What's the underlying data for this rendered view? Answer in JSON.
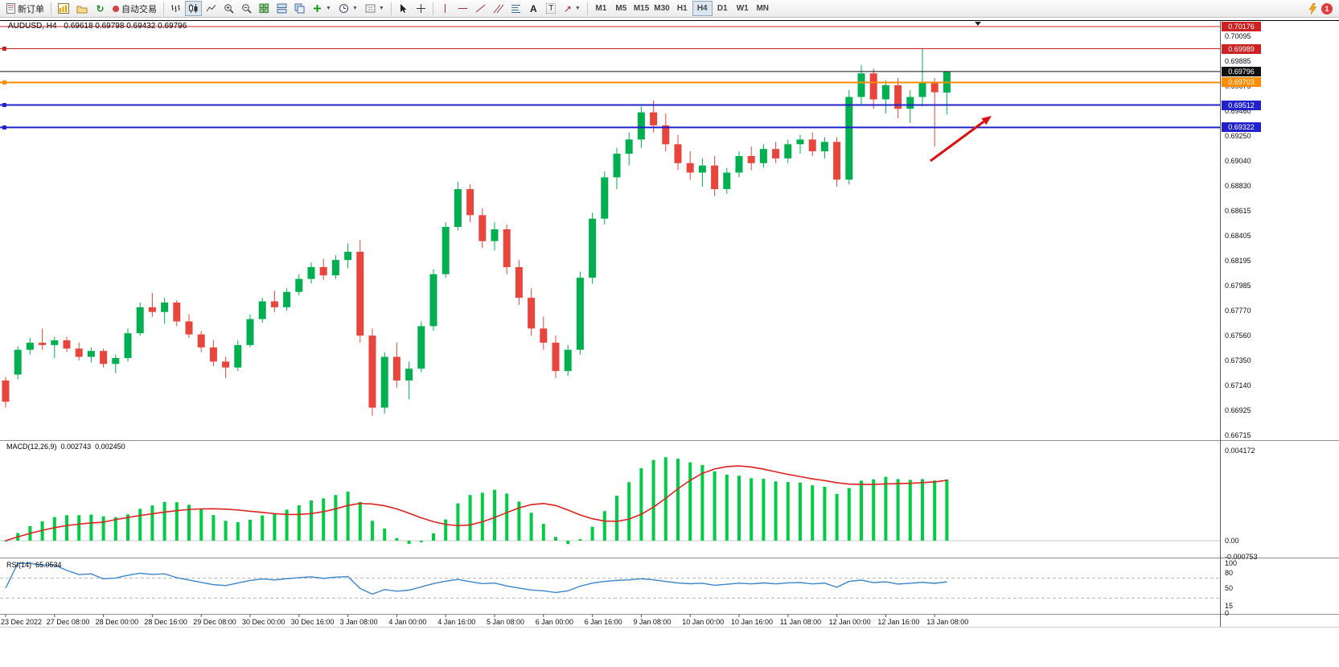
{
  "toolbar": {
    "new_order": "新订单",
    "autotrading": "自动交易",
    "timeframes": [
      "M1",
      "M5",
      "M15",
      "M30",
      "H1",
      "H4",
      "D1",
      "W1",
      "MN"
    ],
    "active_timeframe": "H4",
    "notification_count": "1",
    "icons": [
      "new-order",
      "charts-window",
      "profiles",
      "refresh",
      "autotrading-status",
      "chart-bars",
      "chart-candles",
      "chart-line",
      "zoom-in",
      "zoom-out",
      "tile-windows",
      "arrange-windows",
      "cascade-windows",
      "add-indicator",
      "periods-clock",
      "templates",
      "cursor",
      "crosshair",
      "vertical-line",
      "horizontal-line",
      "trendline",
      "equidistant-channel",
      "fibonacci",
      "text",
      "text-label",
      "arrow-shapes",
      "lightning",
      "notification-badge"
    ]
  },
  "chart": {
    "title_symbol": "AUDUSD, H4",
    "title_ohlc": "0.69618 0.69798 0.69432 0.69796",
    "price_axis": {
      "labels": [
        "0.70095",
        "0.69885",
        "0.69675",
        "0.69460",
        "0.69250",
        "0.69040",
        "0.68830",
        "0.68615",
        "0.68405",
        "0.68195",
        "0.67985",
        "0.67770",
        "0.67560",
        "0.67350",
        "0.67140",
        "0.66925",
        "0.66715"
      ]
    },
    "hlines": [
      {
        "label": "0.70176",
        "price": 0.70176,
        "color": "#cc2222",
        "width": 1,
        "handle": false
      },
      {
        "label": "0.69989",
        "price": 0.69989,
        "color": "#cc2222",
        "width": 1,
        "handle": true
      },
      {
        "label": "0.69796",
        "price": 0.69796,
        "color": "#111111",
        "width": 1,
        "handle": false,
        "current": true
      },
      {
        "label": "0.69703",
        "price": 0.69703,
        "color": "#ff8c00",
        "width": 2,
        "handle": true
      },
      {
        "label": "0.69512",
        "price": 0.69512,
        "color": "#2222cc",
        "width": 2,
        "handle": true
      },
      {
        "label": "0.69322",
        "price": 0.69322,
        "color": "#2222cc",
        "width": 2,
        "handle": true
      }
    ],
    "arrow": {
      "color": "#dd1111",
      "from": [
        1157,
        178
      ],
      "to": [
        1233,
        122
      ]
    }
  },
  "macd": {
    "name": "MACD(12,26,9)",
    "value_main": "0.002743",
    "value_signal": "0.002450",
    "axis": [
      {
        "text": "0.004172",
        "value": 0.004172
      },
      {
        "text": "0.00",
        "value": 0
      },
      {
        "text": "-0.000753",
        "value": -0.000753
      }
    ]
  },
  "rsi": {
    "name": "RSI(14)",
    "value": "65.0534",
    "levels": [
      70,
      30
    ],
    "axis": [
      {
        "text": "100",
        "value": 100
      },
      {
        "text": "80",
        "value": 80
      },
      {
        "text": "50",
        "value": 50
      },
      {
        "text": "15",
        "value": 15
      },
      {
        "text": "0",
        "value": 0
      }
    ]
  },
  "chart_data": {
    "type": "candlestick",
    "symbol": "AUDUSD",
    "timeframe": "H4",
    "current_bar": {
      "open": "0.69618",
      "high": "0.69798",
      "low": "0.69432",
      "close": "0.69796"
    },
    "price_range": [
      0.66682,
      0.70224
    ],
    "colors": {
      "up": "#00b050",
      "down": "#e8453c",
      "macd_histogram": "#00cc44",
      "macd_signal": "#dd2222",
      "rsi_line": "#3d85c8",
      "resistance": "#cc2222",
      "support": "#2222cc",
      "pivot": "#ff8c00"
    },
    "indicators": [
      {
        "name": "MACD",
        "params": [
          12,
          26,
          9
        ],
        "values": [
          0.002743,
          0.00245
        ]
      },
      {
        "name": "RSI",
        "params": [
          14
        ],
        "values": [
          65.0534
        ]
      }
    ],
    "time_labels": [
      "23 Dec 2022",
      "27 Dec 08:00",
      "28 Dec 00:00",
      "28 Dec 16:00",
      "29 Dec 08:00",
      "30 Dec 00:00",
      "30 Dec 16:00",
      "3 Jan 08:00",
      "4 Jan 00:00",
      "4 Jan 16:00",
      "5 Jan 08:00",
      "6 Jan 00:00",
      "6 Jan 16:00",
      "9 Jan 08:00",
      "10 Jan 00:00",
      "10 Jan 16:00",
      "11 Jan 08:00",
      "12 Jan 00:00",
      "12 Jan 16:00",
      "13 Jan 08:00"
    ],
    "ohlc": [
      [
        0.6718,
        0.6721,
        0.6695,
        0.67
      ],
      [
        0.6723,
        0.6747,
        0.6719,
        0.6744
      ],
      [
        0.6744,
        0.6754,
        0.674,
        0.675
      ],
      [
        0.675,
        0.6762,
        0.6744,
        0.6748
      ],
      [
        0.6748,
        0.6755,
        0.6737,
        0.6752
      ],
      [
        0.6752,
        0.6755,
        0.6742,
        0.6745
      ],
      [
        0.6745,
        0.675,
        0.6735,
        0.6738
      ],
      [
        0.6738,
        0.6746,
        0.6733,
        0.6743
      ],
      [
        0.6743,
        0.6745,
        0.6729,
        0.6732
      ],
      [
        0.6732,
        0.674,
        0.6724,
        0.6737
      ],
      [
        0.6737,
        0.6762,
        0.6734,
        0.6758
      ],
      [
        0.6758,
        0.6784,
        0.6756,
        0.678
      ],
      [
        0.678,
        0.6792,
        0.6772,
        0.6776
      ],
      [
        0.6776,
        0.6788,
        0.6766,
        0.6784
      ],
      [
        0.6784,
        0.6786,
        0.6764,
        0.6768
      ],
      [
        0.6768,
        0.6774,
        0.6754,
        0.6757
      ],
      [
        0.6757,
        0.676,
        0.6742,
        0.6746
      ],
      [
        0.6746,
        0.6752,
        0.673,
        0.6734
      ],
      [
        0.6734,
        0.6738,
        0.672,
        0.6729
      ],
      [
        0.6729,
        0.6752,
        0.6726,
        0.6748
      ],
      [
        0.6748,
        0.6774,
        0.6746,
        0.677
      ],
      [
        0.677,
        0.6788,
        0.6767,
        0.6785
      ],
      [
        0.6785,
        0.6794,
        0.6776,
        0.678
      ],
      [
        0.678,
        0.6796,
        0.6777,
        0.6793
      ],
      [
        0.6793,
        0.6808,
        0.679,
        0.6804
      ],
      [
        0.6804,
        0.6818,
        0.68,
        0.6814
      ],
      [
        0.6814,
        0.6821,
        0.6803,
        0.6807
      ],
      [
        0.6807,
        0.6824,
        0.6804,
        0.682
      ],
      [
        0.682,
        0.6834,
        0.6813,
        0.6827
      ],
      [
        0.6827,
        0.6837,
        0.675,
        0.6756
      ],
      [
        0.6756,
        0.6762,
        0.6688,
        0.6695
      ],
      [
        0.6695,
        0.6742,
        0.669,
        0.6738
      ],
      [
        0.6738,
        0.675,
        0.6712,
        0.6718
      ],
      [
        0.6718,
        0.6734,
        0.6702,
        0.6728
      ],
      [
        0.6728,
        0.6768,
        0.6725,
        0.6764
      ],
      [
        0.6764,
        0.6812,
        0.676,
        0.6808
      ],
      [
        0.6808,
        0.6852,
        0.6805,
        0.6848
      ],
      [
        0.6848,
        0.6886,
        0.6845,
        0.688
      ],
      [
        0.688,
        0.6884,
        0.6852,
        0.6858
      ],
      [
        0.6858,
        0.6864,
        0.683,
        0.6836
      ],
      [
        0.6836,
        0.6852,
        0.6828,
        0.6846
      ],
      [
        0.6846,
        0.685,
        0.6808,
        0.6814
      ],
      [
        0.6814,
        0.682,
        0.6782,
        0.6788
      ],
      [
        0.6788,
        0.6796,
        0.6756,
        0.6762
      ],
      [
        0.6762,
        0.6772,
        0.6744,
        0.675
      ],
      [
        0.675,
        0.6756,
        0.672,
        0.6726
      ],
      [
        0.6726,
        0.6748,
        0.6722,
        0.6744
      ],
      [
        0.6744,
        0.681,
        0.674,
        0.6805
      ],
      [
        0.6805,
        0.686,
        0.68,
        0.6855
      ],
      [
        0.6855,
        0.6895,
        0.685,
        0.689
      ],
      [
        0.689,
        0.6915,
        0.688,
        0.691
      ],
      [
        0.691,
        0.6928,
        0.69,
        0.6922
      ],
      [
        0.6922,
        0.695,
        0.6915,
        0.6945
      ],
      [
        0.6945,
        0.6955,
        0.6928,
        0.6934
      ],
      [
        0.6934,
        0.6944,
        0.6912,
        0.6918
      ],
      [
        0.6918,
        0.6926,
        0.6896,
        0.6902
      ],
      [
        0.6902,
        0.6912,
        0.6888,
        0.6894
      ],
      [
        0.6894,
        0.6906,
        0.6882,
        0.69
      ],
      [
        0.69,
        0.6908,
        0.6874,
        0.688
      ],
      [
        0.688,
        0.6898,
        0.6876,
        0.6894
      ],
      [
        0.6894,
        0.6912,
        0.689,
        0.6908
      ],
      [
        0.6908,
        0.6916,
        0.6896,
        0.6902
      ],
      [
        0.6902,
        0.6918,
        0.6898,
        0.6914
      ],
      [
        0.6914,
        0.692,
        0.6902,
        0.6906
      ],
      [
        0.6906,
        0.6922,
        0.6902,
        0.6918
      ],
      [
        0.6918,
        0.6926,
        0.691,
        0.6922
      ],
      [
        0.6922,
        0.6928,
        0.6908,
        0.6912
      ],
      [
        0.6912,
        0.6924,
        0.6906,
        0.692
      ],
      [
        0.692,
        0.6924,
        0.6882,
        0.6888
      ],
      [
        0.6888,
        0.6964,
        0.6884,
        0.6958
      ],
      [
        0.6958,
        0.6985,
        0.6952,
        0.6978
      ],
      [
        0.6978,
        0.6982,
        0.6948,
        0.6956
      ],
      [
        0.6956,
        0.6972,
        0.6944,
        0.6968
      ],
      [
        0.6968,
        0.6974,
        0.694,
        0.6948
      ],
      [
        0.6948,
        0.6964,
        0.6936,
        0.6958
      ],
      [
        0.6958,
        0.6999,
        0.695,
        0.697
      ],
      [
        0.697,
        0.6974,
        0.6916,
        0.6962
      ],
      [
        0.69618,
        0.69798,
        0.69432,
        0.69796
      ]
    ]
  }
}
